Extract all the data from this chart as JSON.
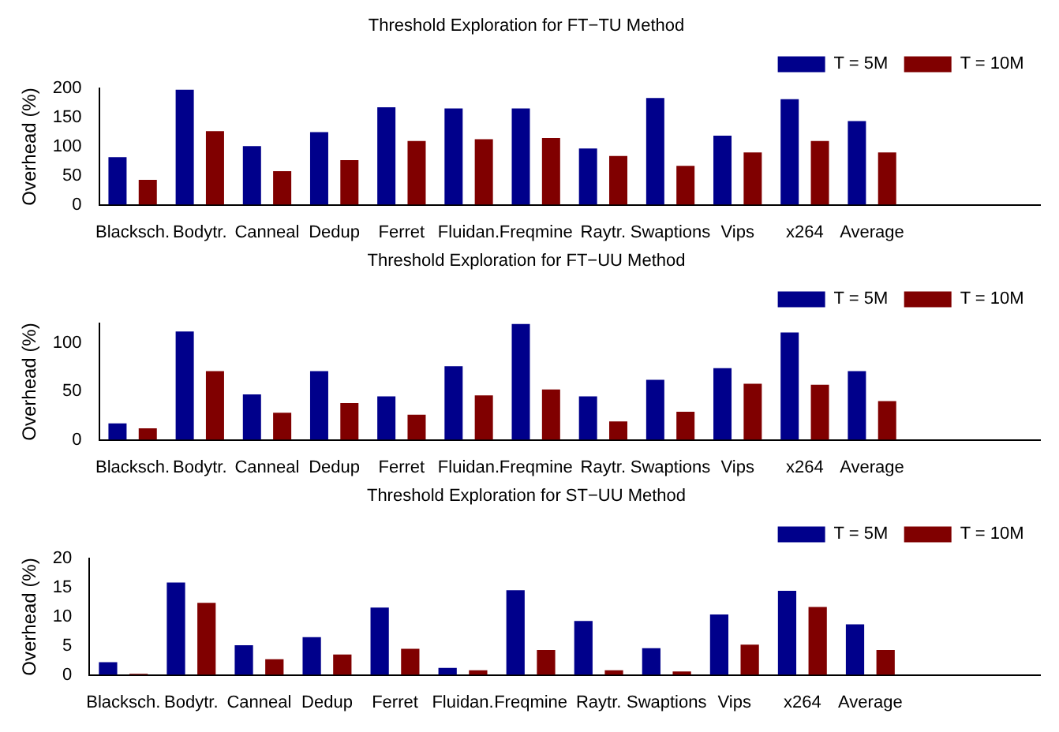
{
  "chart_data": [
    {
      "type": "bar",
      "title": "Threshold Exploration for FT−TU Method",
      "ylabel": "Overhead (%)",
      "categories": [
        "Blacksch.",
        "Bodytr.",
        "Canneal",
        "Dedup",
        "Ferret",
        "Fluidan.",
        "Freqmine",
        "Raytr.",
        "Swaptions",
        "Vips",
        "x264",
        "Average",
        null,
        null
      ],
      "series": [
        {
          "name": "T = 5M",
          "color": "#00008b",
          "values": [
            82,
            198,
            101,
            125,
            168,
            166,
            166,
            97,
            184,
            119,
            182,
            144,
            null,
            null
          ]
        },
        {
          "name": "T = 10M",
          "color": "#800000",
          "values": [
            43,
            127,
            58,
            77,
            110,
            113,
            115,
            84,
            67,
            90,
            110,
            90,
            null,
            null
          ]
        }
      ],
      "ylim": [
        0,
        200
      ],
      "yticks": [
        0,
        50,
        100,
        150,
        200
      ],
      "legend": "top right",
      "grid": false
    },
    {
      "type": "bar",
      "title": "Threshold Exploration for FT−UU Method",
      "ylabel": "Overhead (%)",
      "categories": [
        "Blacksch.",
        "Bodytr.",
        "Canneal",
        "Dedup",
        "Ferret",
        "Fluidan.",
        "Freqmine",
        "Raytr.",
        "Swaptions",
        "Vips",
        "x264",
        "Average",
        null,
        null
      ],
      "series": [
        {
          "name": "T = 5M",
          "color": "#00008b",
          "values": [
            17,
            112,
            47,
            71,
            45,
            76,
            120,
            45,
            62,
            74,
            111,
            71,
            null,
            null
          ]
        },
        {
          "name": "T = 10M",
          "color": "#800000",
          "values": [
            12,
            71,
            28,
            38,
            26,
            46,
            52,
            19,
            29,
            58,
            57,
            40,
            null,
            null
          ]
        }
      ],
      "ylim": [
        0,
        120
      ],
      "yticks": [
        0,
        50,
        100
      ],
      "legend": "top right",
      "grid": false
    },
    {
      "type": "bar",
      "title": "Threshold Exploration for ST−UU Method",
      "ylabel": "Overhead (%)",
      "categories": [
        "Blacksch.",
        "Bodytr.",
        "Canneal",
        "Dedup",
        "Ferret",
        "Fluidan.",
        "Freqmine",
        "Raytr.",
        "Swaptions",
        "Vips",
        "x264",
        "Average",
        null,
        null
      ],
      "series": [
        {
          "name": "T = 5M",
          "color": "#00008b",
          "values": [
            2.2,
            15.9,
            5.1,
            6.5,
            11.6,
            1.2,
            14.6,
            9.3,
            4.6,
            10.4,
            14.5,
            8.7,
            null,
            null
          ]
        },
        {
          "name": "T = 10M",
          "color": "#800000",
          "values": [
            0.2,
            12.4,
            2.7,
            3.5,
            4.5,
            0.8,
            4.3,
            0.8,
            0.6,
            5.2,
            11.7,
            4.3,
            null,
            null
          ]
        }
      ],
      "ylim": [
        0,
        20
      ],
      "yticks": [
        0,
        5,
        10,
        15,
        20
      ],
      "legend": "top right",
      "grid": false
    }
  ]
}
